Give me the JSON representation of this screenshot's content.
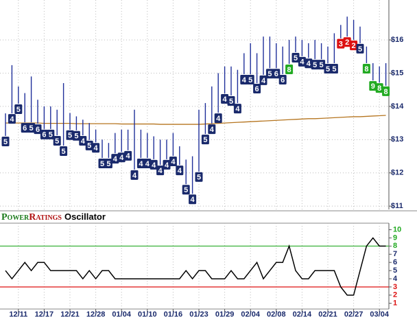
{
  "chart_data": [
    {
      "type": "range-bar",
      "bar_color": "#1f2f9a",
      "grid": true,
      "high": [
        13.79,
        15.24,
        14.6,
        14.4,
        14.9,
        14.2,
        14.0,
        14.0,
        13.9,
        14.7,
        13.8,
        13.7,
        13.6,
        13.5,
        13.3,
        13.0,
        12.9,
        13.2,
        13.3,
        13.3,
        13.9,
        13.3,
        13.2,
        13.1,
        13.0,
        13.0,
        13.2,
        12.8,
        12.4,
        12.5,
        13.9,
        14.1,
        14.6,
        15.0,
        15.2,
        15.2,
        15.1,
        15.6,
        15.9,
        15.6,
        16.1,
        16.1,
        15.9,
        15.8,
        16.0,
        16.1,
        16.0,
        15.9,
        16.0,
        15.9,
        15.8,
        16.2,
        16.45,
        16.7,
        16.6,
        16.4,
        15.8,
        15.3,
        15.2,
        15.3
      ],
      "low": [
        13.11,
        13.79,
        14.08,
        13.52,
        13.52,
        13.48,
        13.32,
        13.32,
        13.13,
        12.82,
        13.3,
        13.28,
        13.13,
        12.99,
        12.92,
        12.45,
        12.45,
        12.59,
        12.63,
        12.68,
        12.1,
        12.45,
        12.45,
        12.41,
        12.24,
        12.41,
        12.51,
        12.24,
        11.66,
        11.37,
        12.04,
        13.17,
        13.48,
        13.81,
        14.39,
        14.33,
        14.1,
        14.97,
        14.97,
        14.7,
        14.95,
        15.15,
        15.15,
        14.97,
        15.28,
        15.63,
        15.51,
        15.46,
        15.42,
        15.42,
        15.3,
        15.3,
        16.05,
        16.1,
        16.0,
        15.9,
        15.3,
        14.78,
        14.72,
        14.62
      ],
      "moving_average": {
        "color": "#b5741e",
        "values": [
          13.5,
          13.5,
          13.5,
          13.5,
          13.5,
          13.5,
          13.49,
          13.49,
          13.49,
          13.49,
          13.49,
          13.48,
          13.48,
          13.48,
          13.48,
          13.48,
          13.48,
          13.48,
          13.47,
          13.47,
          13.47,
          13.47,
          13.47,
          13.47,
          13.46,
          13.46,
          13.46,
          13.46,
          13.46,
          13.46,
          13.46,
          13.47,
          13.48,
          13.49,
          13.5,
          13.51,
          13.52,
          13.53,
          13.54,
          13.55,
          13.56,
          13.57,
          13.58,
          13.59,
          13.6,
          13.61,
          13.62,
          13.63,
          13.63,
          13.64,
          13.65,
          13.66,
          13.67,
          13.68,
          13.69,
          13.69,
          13.7,
          13.71,
          13.72,
          13.73
        ]
      },
      "ylim": [
        10.9,
        17.2
      ],
      "yticks": [
        {
          "value": 11,
          "label": "$11"
        },
        {
          "value": 12,
          "label": "$12"
        },
        {
          "value": 13,
          "label": "$13"
        },
        {
          "value": 14,
          "label": "$14"
        },
        {
          "value": 15,
          "label": "$15"
        },
        {
          "value": 16,
          "label": "$16"
        }
      ]
    },
    {
      "type": "line",
      "title_power": "Power",
      "title_ratings": "Ratings",
      "title": "Oscillator",
      "color": "#000000",
      "categories": [
        null,
        null,
        "12/11",
        null,
        null,
        null,
        "12/17",
        null,
        null,
        null,
        "12/21",
        null,
        null,
        null,
        "12/28",
        null,
        null,
        null,
        "01/04",
        null,
        null,
        null,
        "01/10",
        null,
        null,
        null,
        "01/16",
        null,
        null,
        null,
        "01/23",
        null,
        null,
        null,
        "01/29",
        null,
        null,
        null,
        "02/04",
        null,
        null,
        null,
        "02/08",
        null,
        null,
        null,
        "02/14",
        null,
        null,
        null,
        "02/21",
        null,
        null,
        null,
        "02/27",
        null,
        null,
        null,
        "03/04",
        null
      ],
      "values": [
        5,
        4,
        5,
        6,
        5,
        6,
        6,
        5,
        5,
        5,
        5,
        5,
        4,
        5,
        4,
        5,
        5,
        4,
        4,
        4,
        4,
        4,
        4,
        4,
        4,
        4,
        4,
        4,
        5,
        4,
        5,
        5,
        4,
        4,
        4,
        5,
        4,
        4,
        5,
        6,
        4,
        5,
        6,
        6,
        8,
        5,
        4,
        4,
        5,
        5,
        5,
        5,
        3,
        2,
        2,
        5,
        8,
        9,
        8,
        8
      ],
      "ylim": [
        0.3,
        10.8
      ],
      "yticks": [
        1,
        2,
        3,
        4,
        5,
        6,
        7,
        8,
        9,
        10
      ],
      "upper_level": 8,
      "upper_color": "#22aa22",
      "lower_level": 3,
      "lower_color": "#dd1111",
      "mid_color": "#1a2a6c"
    }
  ]
}
